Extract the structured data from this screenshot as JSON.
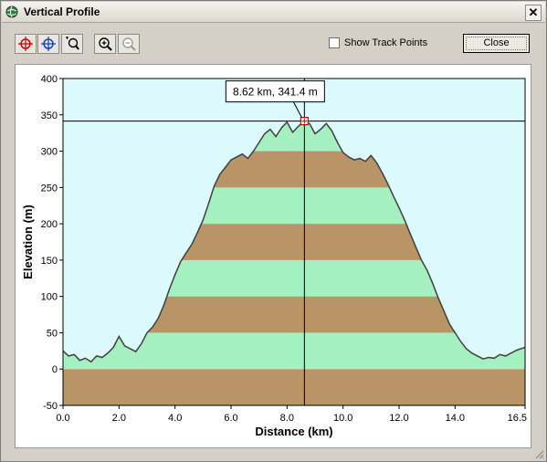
{
  "window": {
    "title": "Vertical Profile",
    "close_glyph": "✕"
  },
  "toolbar": {
    "buttons": [
      {
        "icon": "crosshair-red-icon"
      },
      {
        "icon": "crosshair-blue-icon"
      },
      {
        "icon": "zoom-region-icon"
      },
      {
        "icon": "zoom-in-icon"
      },
      {
        "icon": "zoom-out-icon"
      }
    ],
    "show_track_points": {
      "label": "Show Track Points",
      "checked": false
    },
    "close_label": "Close"
  },
  "cursor_readout": "8.62 km, 341.4 m",
  "colors": {
    "plot_background": "#dcfafc",
    "band_green": "#a4f0c0",
    "band_brown": "#b89466",
    "profile_line": "#404040"
  },
  "chart_data": {
    "type": "area",
    "title": "",
    "xlabel": "Distance  (km)",
    "ylabel": "Elevation (m)",
    "xlim": [
      0.0,
      16.5
    ],
    "ylim": [
      -50,
      400
    ],
    "x_ticks": [
      "0.0",
      "2.0",
      "4.0",
      "6.0",
      "8.0",
      "10.0",
      "12.0",
      "14.0",
      "16.5"
    ],
    "x_tick_values": [
      0,
      2,
      4,
      6,
      8,
      10,
      12,
      14,
      16.5
    ],
    "y_ticks": [
      "-50",
      "0",
      "50",
      "100",
      "150",
      "200",
      "250",
      "300",
      "350",
      "400"
    ],
    "y_tick_values": [
      -50,
      0,
      50,
      100,
      150,
      200,
      250,
      300,
      350,
      400
    ],
    "band_interval_m": 50,
    "cursor": {
      "x": 8.62,
      "y": 341.4
    },
    "series": [
      {
        "x": [
          0.0,
          0.2,
          0.4,
          0.6,
          0.8,
          1.0,
          1.2,
          1.4,
          1.6,
          1.8,
          2.0,
          2.2,
          2.4,
          2.6,
          2.8,
          3.0,
          3.2,
          3.4,
          3.6,
          3.8,
          4.0,
          4.2,
          4.4,
          4.6,
          4.8,
          5.0,
          5.2,
          5.4,
          5.6,
          5.8,
          6.0,
          6.2,
          6.4,
          6.6,
          6.8,
          7.0,
          7.2,
          7.4,
          7.6,
          7.8,
          8.0,
          8.2,
          8.4,
          8.6,
          8.8,
          9.0,
          9.2,
          9.4,
          9.6,
          9.8,
          10.0,
          10.2,
          10.4,
          10.6,
          10.8,
          11.0,
          11.2,
          11.4,
          11.6,
          11.8,
          12.0,
          12.2,
          12.4,
          12.6,
          12.8,
          13.0,
          13.2,
          13.4,
          13.6,
          13.8,
          14.0,
          14.2,
          14.4,
          14.6,
          14.8,
          15.0,
          15.2,
          15.4,
          15.6,
          15.8,
          16.0,
          16.2,
          16.5
        ],
        "y": [
          25,
          18,
          20,
          12,
          15,
          10,
          18,
          16,
          22,
          30,
          45,
          32,
          28,
          24,
          35,
          50,
          58,
          70,
          88,
          110,
          130,
          148,
          160,
          172,
          188,
          205,
          228,
          252,
          268,
          278,
          288,
          292,
          296,
          290,
          300,
          312,
          324,
          330,
          320,
          332,
          340,
          326,
          334,
          341,
          338,
          324,
          330,
          338,
          328,
          312,
          298,
          292,
          288,
          290,
          286,
          294,
          284,
          270,
          255,
          238,
          222,
          205,
          186,
          168,
          150,
          136,
          118,
          98,
          80,
          62,
          50,
          38,
          28,
          22,
          18,
          14,
          16,
          15,
          20,
          18,
          22,
          26,
          30
        ]
      }
    ]
  }
}
